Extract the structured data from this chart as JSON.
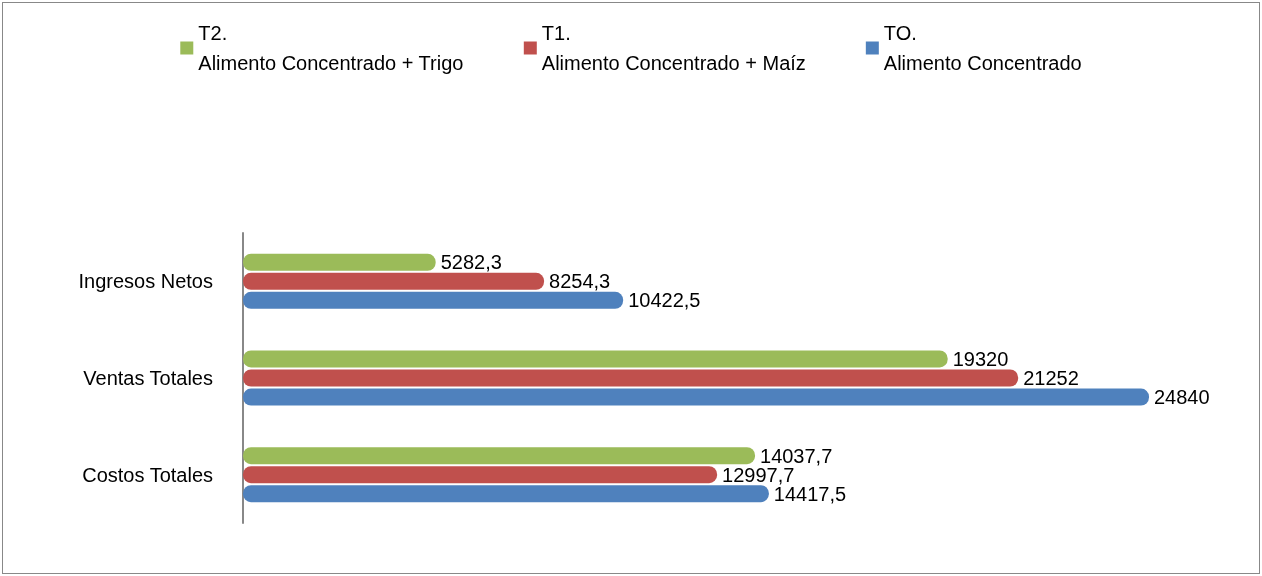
{
  "chart_data": {
    "type": "bar",
    "orientation": "horizontal",
    "categories": [
      "Ingresos Netos",
      "Ventas Totales",
      "Costos Totales"
    ],
    "legend": "top",
    "grid": false,
    "series": [
      {
        "name": "T2.\nAlimento Concentrado + Trigo",
        "color": "#9bbb59",
        "values": [
          5282.3,
          19320,
          14037.7
        ],
        "value_labels": [
          "5282,3",
          "19320",
          "14037,7"
        ]
      },
      {
        "name": "T1.\nAlimento Concentrado + Maíz",
        "color": "#c0504d",
        "values": [
          8254.3,
          21252,
          12997.7
        ],
        "value_labels": [
          "8254,3",
          "21252",
          "12997,7"
        ]
      },
      {
        "name": "TO.\nAlimento Concentrado",
        "color": "#4f81bd",
        "values": [
          10422.5,
          24840,
          14417.5
        ],
        "value_labels": [
          "10422,5",
          "24840",
          "14417,5"
        ]
      }
    ]
  }
}
